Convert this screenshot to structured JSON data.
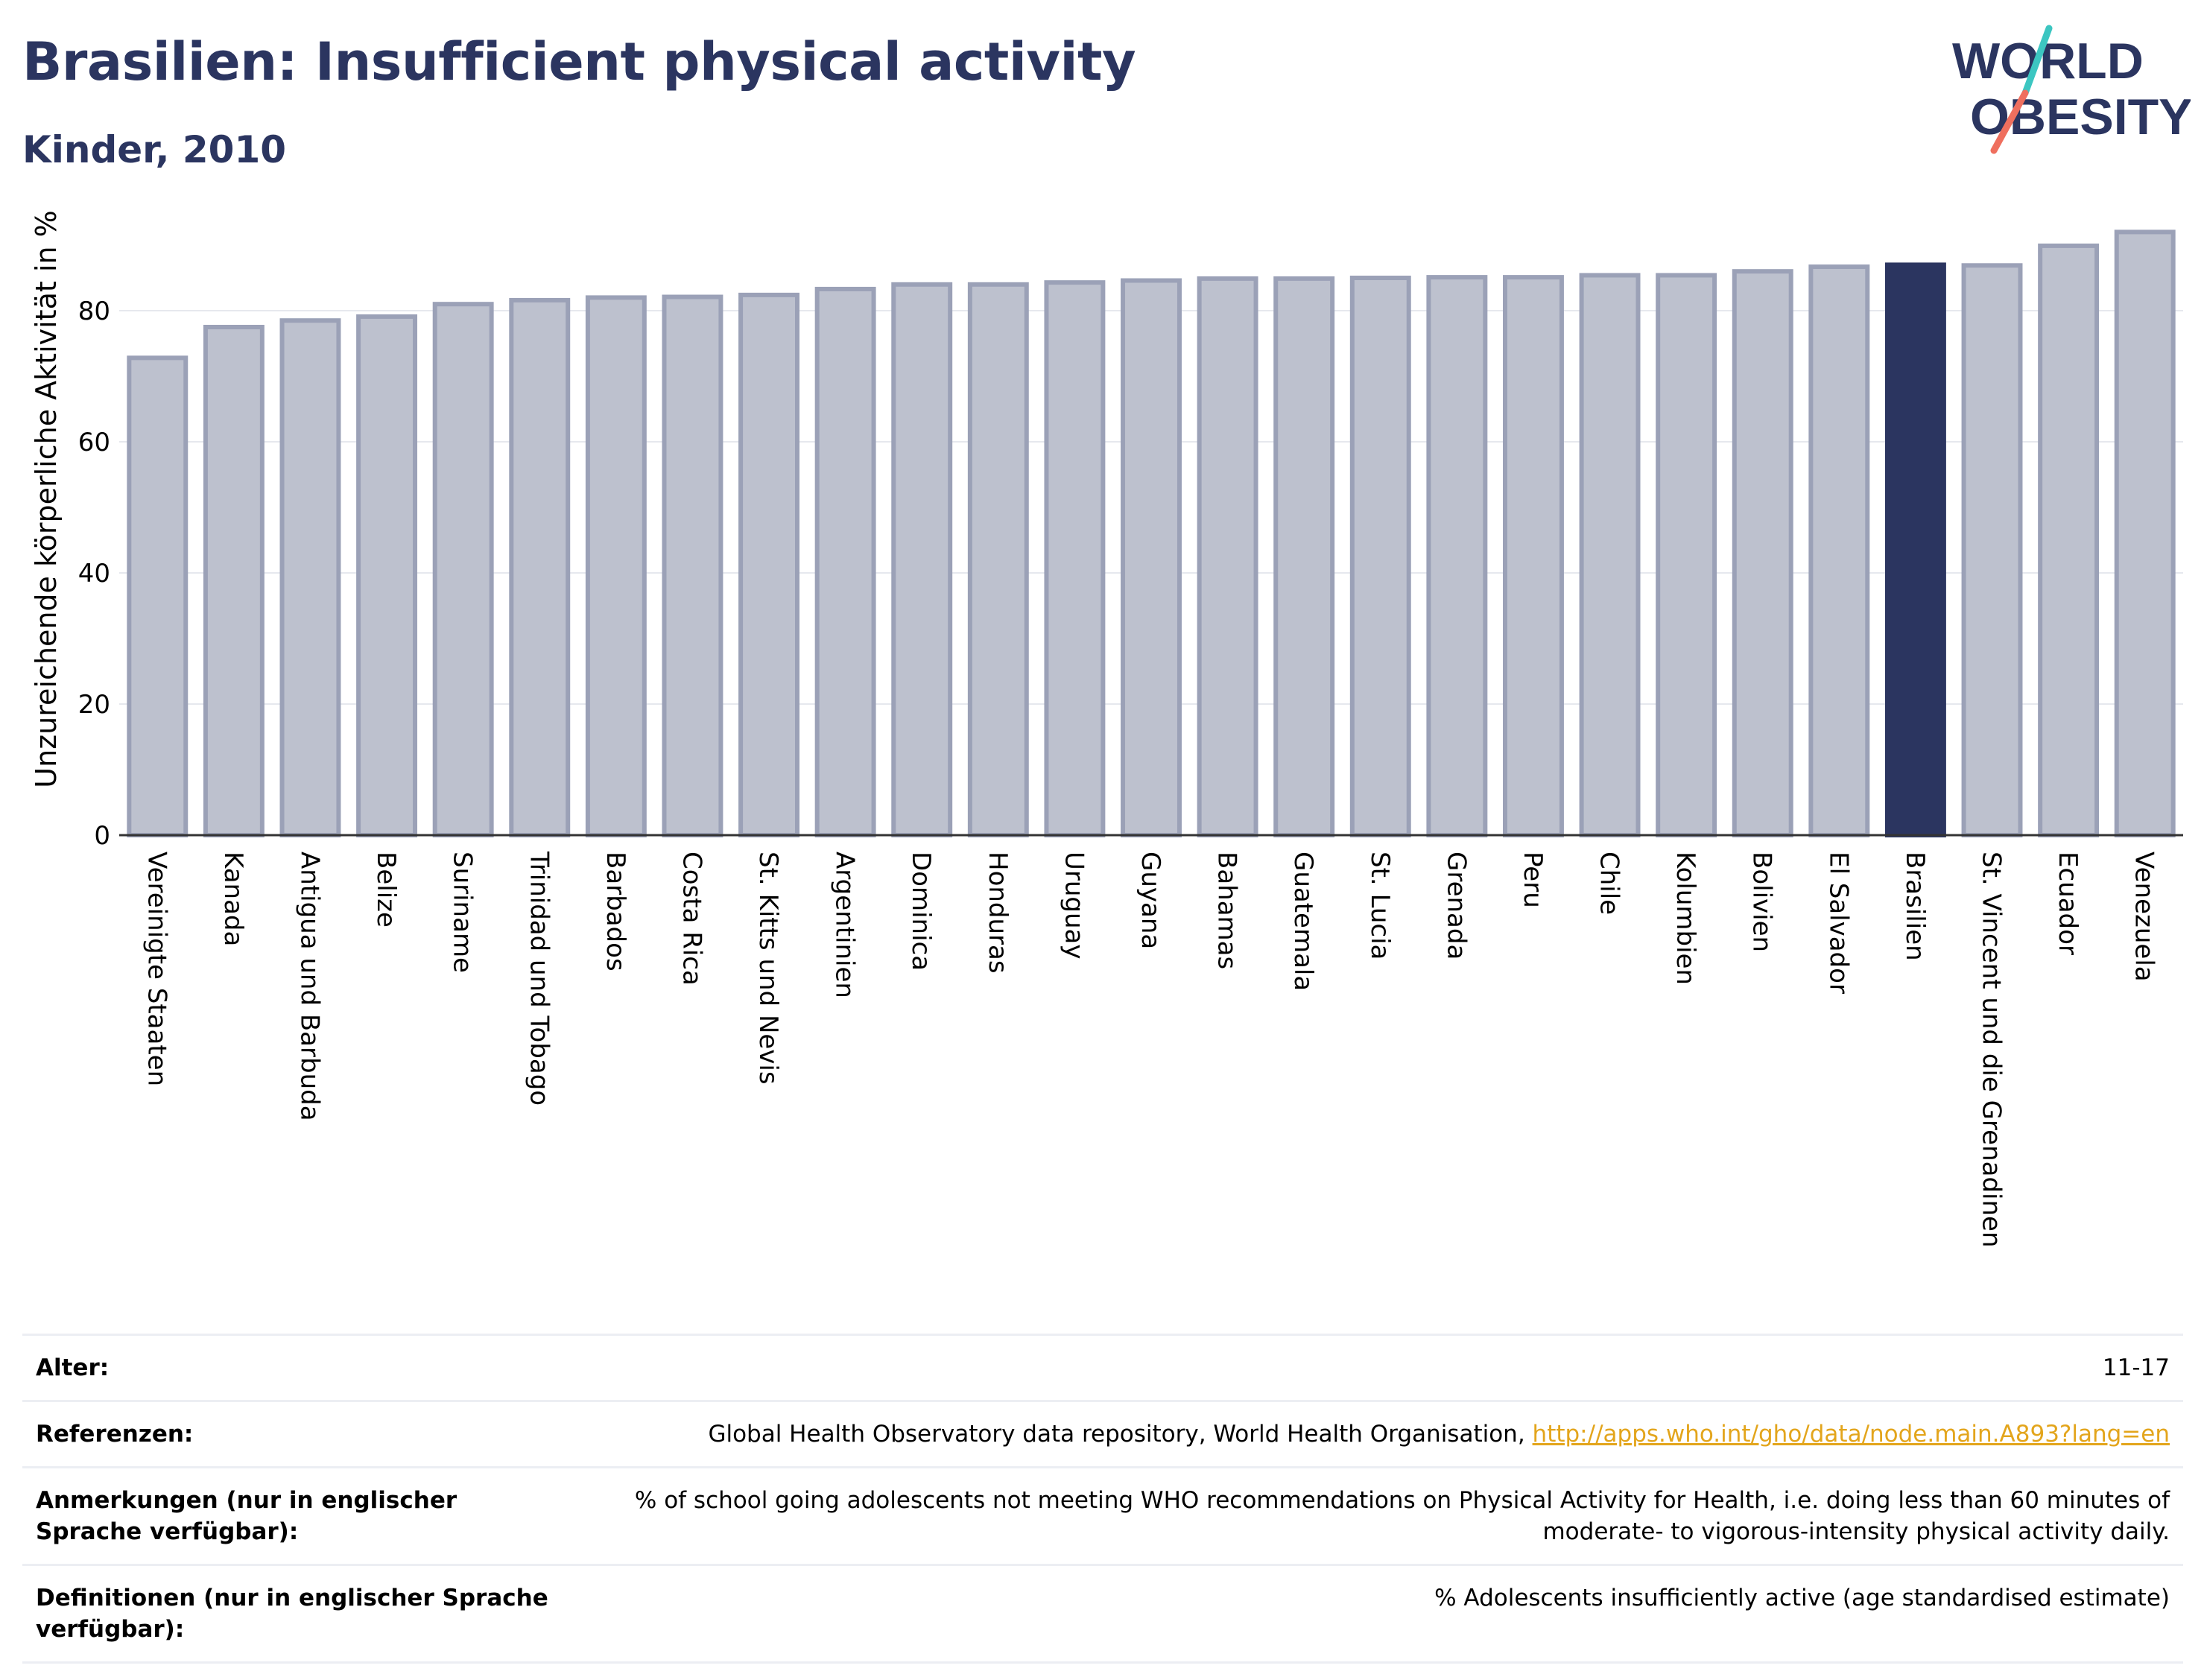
{
  "header": {
    "title": "Brasilien: Insufficient physical activity",
    "subtitle": "Kinder, 2010"
  },
  "logo": {
    "line1": "WORLD",
    "line2": "OBESITY",
    "text_color": "#2b3560",
    "slash_colors": [
      "#3cc6c1",
      "#ef6f5e"
    ]
  },
  "chart_data": {
    "type": "bar",
    "ylabel": "Unzureichende körperliche Aktivität in %",
    "xlabel": "",
    "ylim": [
      0,
      95
    ],
    "yticks": [
      0,
      20,
      40,
      60,
      80
    ],
    "grid": true,
    "highlight": "Brasilien",
    "colors": {
      "bar": "#bdc1ce",
      "bar_edge": "#9ba1b7",
      "highlight": "#2b3560",
      "grid": "#e6e8ee",
      "axis": "#333333"
    },
    "categories": [
      "Vereinigte Staaten",
      "Kanada",
      "Antigua und Barbuda",
      "Belize",
      "Suriname",
      "Trinidad und Tobago",
      "Barbados",
      "Costa Rica",
      "St. Kitts und Nevis",
      "Argentinien",
      "Dominica",
      "Honduras",
      "Uruguay",
      "Guyana",
      "Bahamas",
      "Guatemala",
      "St. Lucia",
      "Grenada",
      "Peru",
      "Chile",
      "Kolumbien",
      "Bolivien",
      "El Salvador",
      "Brasilien",
      "St. Vincent und die Grenadinen",
      "Ecuador",
      "Venezuela"
    ],
    "values": [
      72.8,
      77.5,
      78.5,
      79.1,
      81.0,
      81.6,
      82.0,
      82.1,
      82.4,
      83.3,
      84.0,
      84.0,
      84.3,
      84.6,
      84.9,
      84.9,
      85.0,
      85.1,
      85.1,
      85.4,
      85.4,
      86.0,
      86.7,
      87.0,
      86.9,
      89.9,
      92.0
    ]
  },
  "info": {
    "rows": [
      {
        "label": "Alter:",
        "value": "11-17"
      },
      {
        "label": "Referenzen:",
        "value": "Global Health Observatory data repository, World Health Organisation, ",
        "link": "http://apps.who.int/gho/data/node.main.A893?lang=en"
      },
      {
        "label": "Anmerkungen (nur in englischer Sprache verfügbar):",
        "value": "% of school going adolescents not meeting WHO recommendations on Physical Activity for Health, i.e. doing less than 60 minutes of moderate- to vigorous-intensity physical activity daily."
      },
      {
        "label": "Definitionen (nur in englischer Sprache verfügbar):",
        "value": "% Adolescents insufficiently active (age standardised estimate)"
      }
    ]
  }
}
